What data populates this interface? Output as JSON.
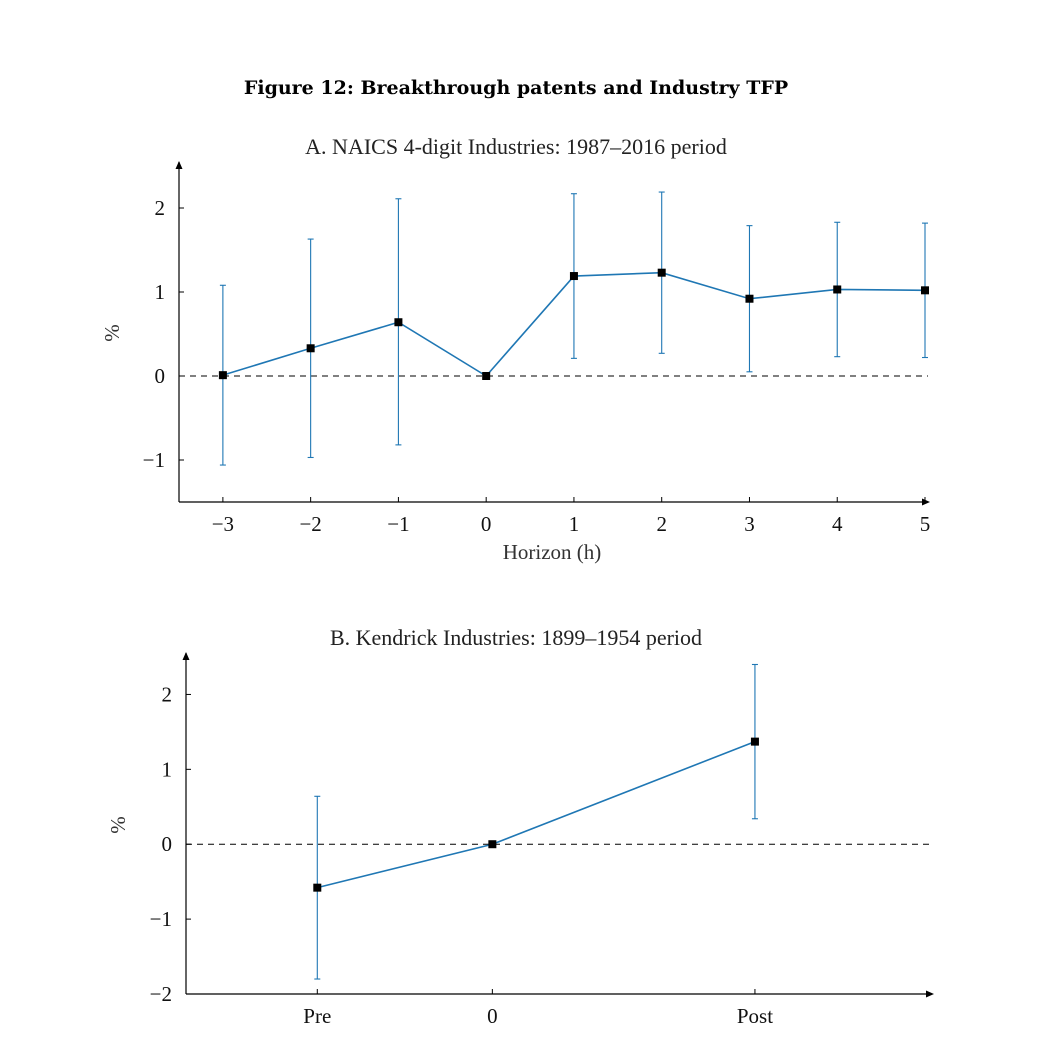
{
  "figure_title": "Figure 12: Breakthrough patents and Industry TFP",
  "colors": {
    "series": "#1f77b4",
    "axis": "#000000",
    "marker": "#000000"
  },
  "chart_data": [
    {
      "type": "line",
      "title": "A. NAICS 4-digit Industries: 1987–2016 period",
      "xlabel": "Horizon (h)",
      "ylabel": "%",
      "x": [
        -3,
        -2,
        -1,
        0,
        1,
        2,
        3,
        4,
        5
      ],
      "x_tick_labels": [
        "−3",
        "−2",
        "−1",
        "0",
        "1",
        "2",
        "3",
        "4",
        "5"
      ],
      "xlim": [
        -3.5,
        5
      ],
      "ylim": [
        -1.5,
        2.5
      ],
      "y_ticks": [
        -1,
        0,
        1,
        2
      ],
      "y_tick_labels": [
        "−1",
        "0",
        "1",
        "2"
      ],
      "series": [
        {
          "values": [
            0.01,
            0.33,
            0.64,
            0.0,
            1.19,
            1.23,
            0.92,
            1.03,
            1.02
          ],
          "ci_low": [
            -1.06,
            -0.97,
            -0.82,
            0.0,
            0.21,
            0.27,
            0.05,
            0.23,
            0.22
          ],
          "ci_high": [
            1.08,
            1.63,
            2.11,
            0.0,
            2.17,
            2.19,
            1.79,
            1.83,
            1.82
          ]
        }
      ],
      "zero_line": "dashed",
      "grid": false
    },
    {
      "type": "line",
      "title": "B. Kendrick Industries: 1899–1954 period",
      "xlabel": "",
      "ylabel": "%",
      "categories": [
        "Pre",
        "0",
        "Post"
      ],
      "x": [
        -1,
        0,
        1.5
      ],
      "xlim": [
        -1.75,
        2.5
      ],
      "ylim": [
        -2,
        2.5
      ],
      "y_ticks": [
        -2,
        -1,
        0,
        1,
        2
      ],
      "y_tick_labels": [
        "−2",
        "−1",
        "0",
        "1",
        "2"
      ],
      "series": [
        {
          "values": [
            -0.58,
            0.0,
            1.37
          ],
          "ci_low": [
            -1.8,
            0.0,
            0.34
          ],
          "ci_high": [
            0.64,
            0.0,
            2.4
          ]
        }
      ],
      "zero_line": "dashed",
      "grid": false
    }
  ]
}
